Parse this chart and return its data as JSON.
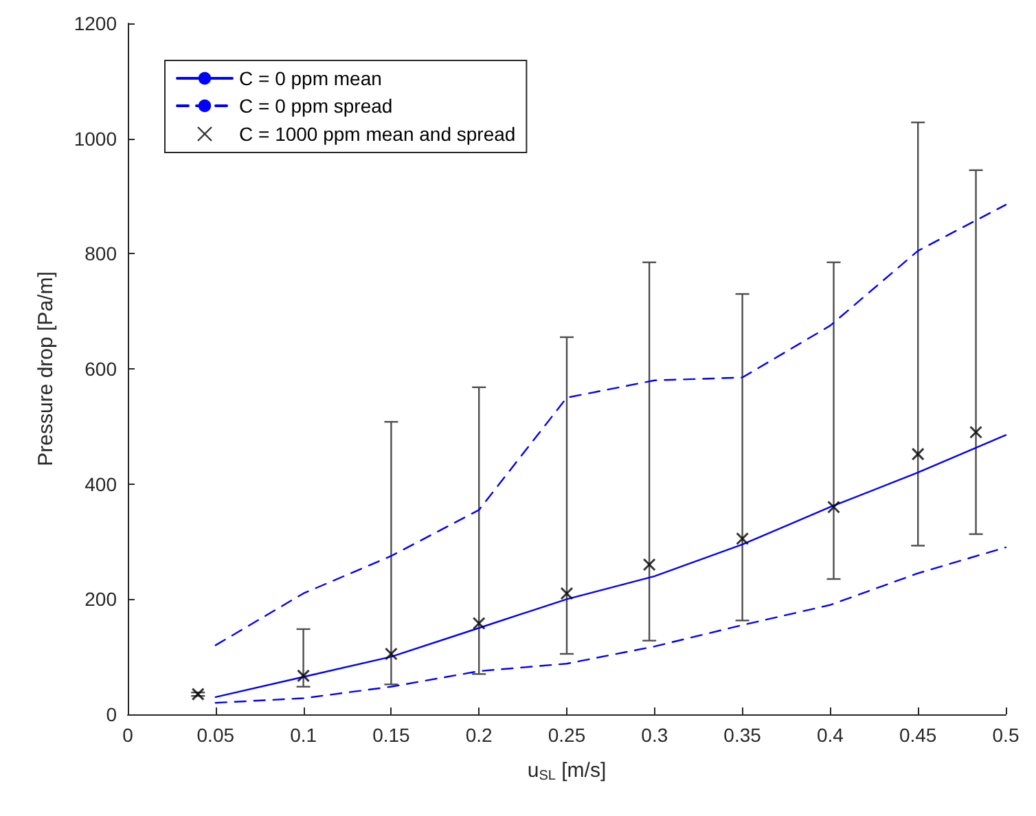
{
  "chart_data": {
    "type": "line",
    "xlabel": "u$_{SL}$ [m/s]",
    "ylabel": "Pressure drop [Pa/m]",
    "xlim": [
      0,
      0.5
    ],
    "xticks": [
      0,
      0.05,
      0.1,
      0.15,
      0.2,
      0.25,
      0.3,
      0.35,
      0.4,
      0.45,
      0.5
    ],
    "ylim": [
      0,
      1200
    ],
    "yticks": [
      0,
      200,
      400,
      600,
      800,
      1000,
      1200
    ],
    "grid": false,
    "legend": "top left",
    "series": [
      {
        "name": "C = 0 ppm mean",
        "color": "#0000ff",
        "line_style": "solid",
        "marker": "none",
        "x": [
          0.05,
          0.1,
          0.15,
          0.2,
          0.25,
          0.3,
          0.35,
          0.4,
          0.45,
          0.5
        ],
        "values": [
          30,
          65,
          100,
          150,
          200,
          240,
          295,
          360,
          420,
          485
        ]
      },
      {
        "name": "C = 0 ppm spread",
        "color": "#0000ff",
        "line_style": "dashed",
        "marker": "none",
        "x": [
          0.05,
          0.1,
          0.15,
          0.2,
          0.25,
          0.3,
          0.35,
          0.4,
          0.45,
          0.5
        ],
        "values": [
          120,
          210,
          275,
          355,
          550,
          580,
          585,
          675,
          805,
          885
        ]
      },
      {
        "color": "#0000ff",
        "line_style": "dashed",
        "marker": "none",
        "x": [
          0.05,
          0.1,
          0.15,
          0.2,
          0.25,
          0.3,
          0.35,
          0.4,
          0.45,
          0.5
        ],
        "values": [
          20,
          28,
          48,
          75,
          88,
          118,
          155,
          190,
          245,
          290
        ]
      },
      {
        "name": "C = 1000 ppm mean and spread",
        "color": "#000000",
        "type": "scatter",
        "marker": "cross",
        "x": [
          0.04,
          0.1,
          0.15,
          0.2,
          0.25,
          0.297,
          0.35,
          0.402,
          0.45,
          0.483
        ],
        "values": [
          35,
          67,
          105,
          158,
          210,
          260,
          305,
          360,
          452,
          490
        ],
        "errors": [
          [
            32,
            38
          ],
          [
            48,
            148
          ],
          [
            52,
            508
          ],
          [
            70,
            568
          ],
          [
            105,
            655
          ],
          [
            128,
            785
          ],
          [
            163,
            730
          ],
          [
            235,
            785
          ],
          [
            293,
            1028
          ],
          [
            313,
            945
          ]
        ]
      }
    ]
  }
}
